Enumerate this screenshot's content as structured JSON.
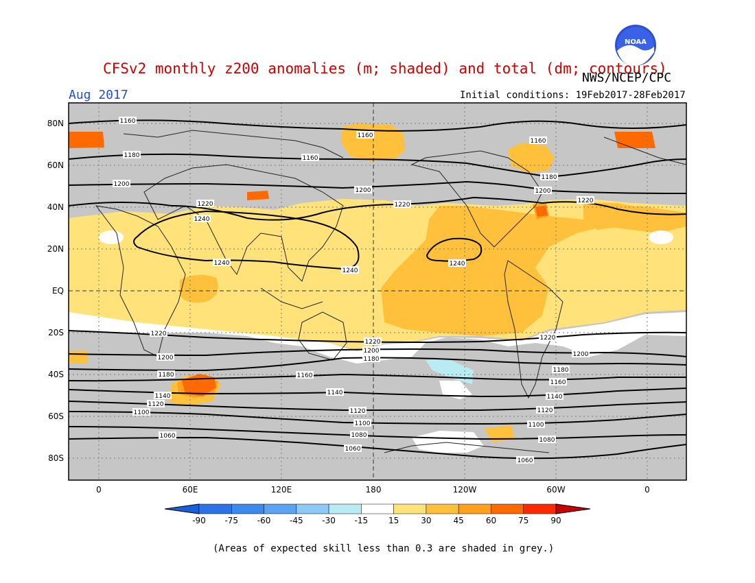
{
  "title": "CFSv2 monthly z200 anomalies (m; shaded) and total (dm; contours)",
  "agency": "NWS/NCEP/CPC",
  "month": "Aug 2017",
  "initial_conditions": "Initial conditions: 19Feb2017-28Feb2017",
  "footnote": "(Areas of expected skill less than 0.3 are shaded in grey.)",
  "logo_text": "NOAA",
  "lat_labels": [
    "80N",
    "60N",
    "40N",
    "20N",
    "EQ",
    "20S",
    "40S",
    "60S",
    "80S"
  ],
  "lon_labels": [
    "0",
    "60E",
    "120E",
    "180",
    "120W",
    "60W",
    "0"
  ],
  "colorbar": {
    "labels": [
      "-90",
      "-75",
      "-60",
      "-45",
      "-30",
      "-15",
      "15",
      "30",
      "45",
      "60",
      "75",
      "90"
    ],
    "colors": [
      "#1b5fd8",
      "#2b73e6",
      "#3d8aee",
      "#5aa3f2",
      "#8ec8f6",
      "#b8ecf2",
      "#ffffff",
      "#ffe37a",
      "#ffc03c",
      "#ffa11e",
      "#ff6a00",
      "#ff2a00",
      "#c80000"
    ]
  },
  "colors": {
    "grey": "#c6c6c6",
    "white": "#ffffff",
    "a15_30": "#ffe37a",
    "a30_45": "#ffc03c",
    "a45_60": "#ffa11e",
    "a60_75": "#ff6a00",
    "a75_90": "#ff2a00"
  },
  "contour_labels": {
    "c1160a": "1160",
    "c1160b": "1160",
    "c1160c": "1160",
    "c1160d": "1160",
    "c1180a": "1180",
    "c1180b": "1180",
    "c1200a": "1200",
    "c1200b": "1200",
    "c1200c": "1200",
    "c1220a": "1220",
    "c1220b": "1220",
    "c1220c": "1220",
    "c1240a": "1240",
    "c1240b": "1240",
    "c1240c": "1240",
    "c1240d": "1240",
    "s1220a": "1220",
    "s1220b": "1220",
    "s1220c": "1220",
    "s1200a": "1200",
    "s1200b": "1200",
    "s1200c": "1200",
    "s1180a": "1180",
    "s1180b": "1180",
    "s1180c": "1180",
    "s1160a": "1160",
    "s1160b": "1160",
    "s1140a": "1140",
    "s1140b": "1140",
    "s1140c": "1140",
    "s1120a": "1120",
    "s1120b": "1120",
    "s1120c": "1120",
    "s1100a": "1100",
    "s1100b": "1100",
    "s1100c": "1100",
    "s1080a": "1080",
    "s1080b": "1080",
    "s1060a": "1060",
    "s1060b": "1060",
    "s1060c": "1060"
  }
}
